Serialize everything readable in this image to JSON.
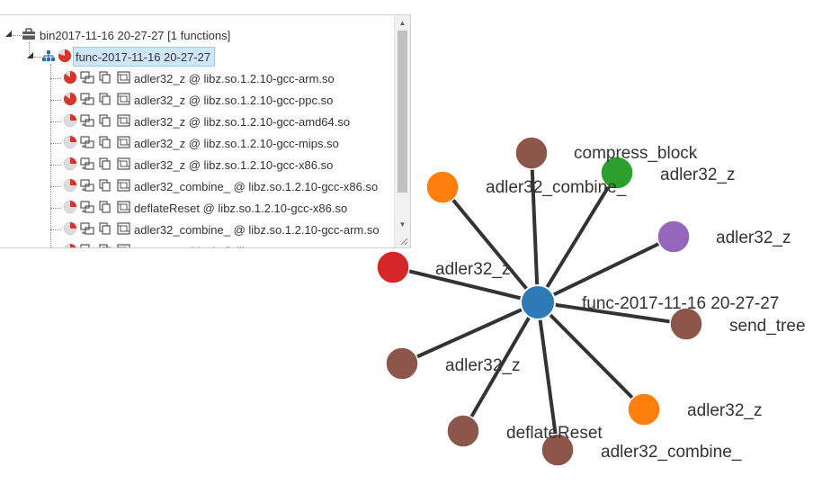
{
  "tree": {
    "root": {
      "label": "bin2017-11-16 20-27-27 [1 functions]"
    },
    "func": {
      "label": "func-2017-11-16 20-27-27"
    },
    "items": [
      {
        "label": "adler32_z @ libz.so.1.2.10-gcc-arm.so",
        "pie": 0.85
      },
      {
        "label": "adler32_z @ libz.so.1.2.10-gcc-ppc.so",
        "pie": 0.85
      },
      {
        "label": "adler32_z @ libz.so.1.2.10-gcc-amd64.so",
        "pie": 0.25
      },
      {
        "label": "adler32_z @ libz.so.1.2.10-gcc-mips.so",
        "pie": 0.25
      },
      {
        "label": "adler32_z @ libz.so.1.2.10-gcc-x86.so",
        "pie": 0.25
      },
      {
        "label": "adler32_combine_ @ libz.so.1.2.10-gcc-x86.so",
        "pie": 0.25
      },
      {
        "label": "deflateReset @ libz.so.1.2.10-gcc-x86.so",
        "pie": 0.25
      },
      {
        "label": "adler32_combine_ @ libz.so.1.2.10-gcc-arm.so",
        "pie": 0.25
      },
      {
        "label": "compress_block @ libz.so.1.2.10-gcc-x86.so",
        "pie": 0.25
      }
    ]
  },
  "graph": {
    "center": {
      "label": "func-2017-11-16 20-27-27",
      "color": "#2c7bb6"
    },
    "nodes": [
      {
        "label": "adler32_combine_",
        "color": "#8c564b"
      },
      {
        "label": "compress_block",
        "color": "#2ca02c"
      },
      {
        "label": "adler32_z",
        "color": "#ff7f0e"
      },
      {
        "label": "adler32_z",
        "color": "#9467bd"
      },
      {
        "label": "adler32_z",
        "color": "#d62728"
      },
      {
        "label": "send_tree",
        "color": "#8c564b"
      },
      {
        "label": "adler32_z",
        "color": "#8c564b"
      },
      {
        "label": "adler32_z",
        "color": "#ff7f0e"
      },
      {
        "label": "deflateReset",
        "color": "#8c564b"
      },
      {
        "label": "adler32_combine_",
        "color": "#8c564b"
      },
      {
        "label": "adler32_z",
        "color": "#8c564b"
      }
    ]
  },
  "colors": {
    "pie_red": "#d9352b",
    "pie_gray": "#dddddd",
    "selected_bg": "#cfe6f7"
  },
  "icons": {
    "root": "toolbox-icon",
    "func": "sitemap-icon",
    "item": [
      "pie-icon",
      "compare-icon",
      "copy-icon",
      "graph-icon"
    ]
  }
}
